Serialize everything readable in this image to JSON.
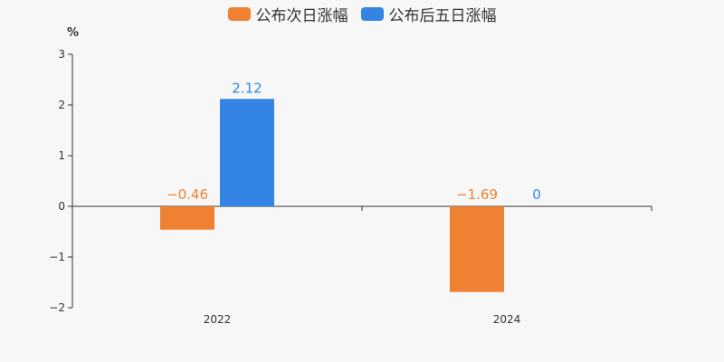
{
  "chart_data": {
    "type": "bar",
    "categories": [
      "2022",
      "2024"
    ],
    "series": [
      {
        "name": "公布次日涨幅",
        "color": "#ef8132",
        "values": [
          -0.46,
          -1.69
        ],
        "labels": [
          "−0.46",
          "−1.69"
        ]
      },
      {
        "name": "公布后五日涨幅",
        "color": "#3484e4",
        "values": [
          2.12,
          0
        ],
        "labels": [
          "2.12",
          "0"
        ]
      }
    ],
    "ylabel": "%",
    "ylim": [
      -2,
      3
    ],
    "yticks": [
      3,
      2,
      1,
      0,
      -1,
      -2
    ],
    "ytick_labels": [
      "3",
      "2",
      "1",
      "0",
      "−1",
      "−2"
    ],
    "legend_position": "top-center",
    "grid": false
  }
}
